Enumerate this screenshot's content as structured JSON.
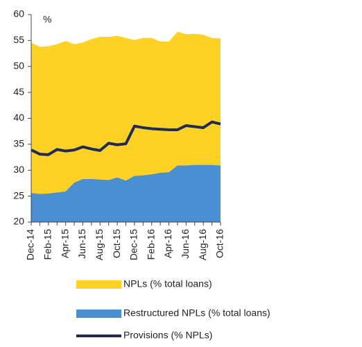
{
  "chart_data": {
    "type": "area_line",
    "annotation": "%",
    "categories": [
      "Dec-14",
      null,
      "Feb-15",
      null,
      "Apr-15",
      null,
      "Jun-15",
      null,
      "Aug-15",
      null,
      "Oct-15",
      null,
      "Dec-15",
      null,
      "Feb-16",
      null,
      "Apr-16",
      null,
      "Jun-16",
      null,
      "Aug-16",
      null,
      "Oct-16"
    ],
    "series": [
      {
        "name": "NPLs (% total loans)",
        "kind": "area",
        "color": "#fdd225",
        "values": [
          54.6,
          53.8,
          53.9,
          54.3,
          54.9,
          54.3,
          54.6,
          55.3,
          55.7,
          55.7,
          55.9,
          55.5,
          55.1,
          55.5,
          55.5,
          54.8,
          54.8,
          56.7,
          56.2,
          56.3,
          56.1,
          55.5,
          55.4
        ]
      },
      {
        "name": "Restructured NPLs (% total loans)",
        "kind": "area",
        "color": "#4a8fd1",
        "values": [
          25.6,
          25.4,
          25.5,
          25.7,
          25.9,
          27.6,
          28.3,
          28.3,
          28.2,
          28.1,
          28.6,
          28.0,
          28.9,
          29.0,
          29.2,
          29.5,
          29.6,
          30.9,
          30.9,
          31.0,
          31.0,
          31.0,
          30.9
        ]
      },
      {
        "name": "Provisions (% NPLs)",
        "kind": "line",
        "color": "#1f2a55",
        "values": [
          33.9,
          33.1,
          33.0,
          34.0,
          33.7,
          33.9,
          34.5,
          34.1,
          33.8,
          35.2,
          34.9,
          35.1,
          38.5,
          38.2,
          38.0,
          37.9,
          37.8,
          37.8,
          38.6,
          38.4,
          38.2,
          39.3,
          38.9
        ]
      }
    ],
    "ylim": [
      20,
      60
    ],
    "yticks": [
      20,
      25,
      30,
      35,
      40,
      45,
      50,
      55,
      60
    ]
  }
}
